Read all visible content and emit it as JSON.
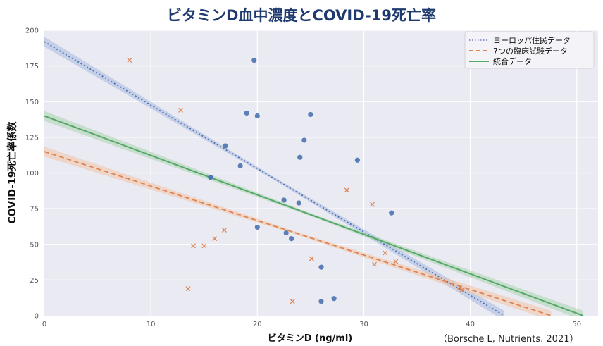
{
  "chart_data": {
    "type": "scatter",
    "title": "ビタミンD血中濃度とCOVID-19死亡率",
    "xlabel": "ビタミンD (ng/ml)",
    "ylabel": "COVID-19死亡率係数",
    "xlim": [
      0,
      52
    ],
    "ylim": [
      0,
      200
    ],
    "xticks": [
      0,
      10,
      20,
      30,
      40,
      50
    ],
    "yticks": [
      0,
      25,
      50,
      75,
      100,
      125,
      150,
      175,
      200
    ],
    "grid": true,
    "legend_position": "top-right",
    "colors": {
      "europe": "#4c72b0",
      "trials": "#dd8452",
      "combined": "#55a868",
      "background": "#eaeaf2",
      "title": "#1f3a6e"
    },
    "series": [
      {
        "name": "ヨーロッパ住民データ",
        "marker": "circle",
        "line_style": "dotted",
        "points": [
          [
            19.7,
            179
          ],
          [
            19.0,
            142
          ],
          [
            20.0,
            140
          ],
          [
            25.0,
            141
          ],
          [
            24.4,
            123
          ],
          [
            17.0,
            119
          ],
          [
            24.0,
            111
          ],
          [
            29.4,
            109
          ],
          [
            18.4,
            105
          ],
          [
            22.5,
            81
          ],
          [
            23.9,
            79
          ],
          [
            32.6,
            72
          ],
          [
            20.0,
            62
          ],
          [
            22.7,
            58
          ],
          [
            23.2,
            54
          ],
          [
            26.0,
            34
          ],
          [
            27.2,
            12
          ],
          [
            26.0,
            10
          ]
        ],
        "fit": [
          [
            0,
            192
          ],
          [
            43.2,
            0
          ]
        ]
      },
      {
        "name": "7つの臨床試験データ",
        "marker": "x",
        "line_style": "dashed",
        "points": [
          [
            8.0,
            179
          ],
          [
            12.8,
            144
          ],
          [
            28.4,
            88
          ],
          [
            30.8,
            78
          ],
          [
            16.9,
            60
          ],
          [
            16.0,
            54
          ],
          [
            14.0,
            49
          ],
          [
            15.0,
            49
          ],
          [
            32.0,
            44
          ],
          [
            25.1,
            40
          ],
          [
            33.0,
            38
          ],
          [
            31.0,
            36
          ],
          [
            39.0,
            20
          ],
          [
            39.2,
            18
          ],
          [
            13.5,
            19
          ],
          [
            23.3,
            10
          ]
        ],
        "fit": [
          [
            0,
            115
          ],
          [
            47.6,
            0
          ]
        ]
      },
      {
        "name": "統合データ",
        "line_style": "solid",
        "fit": [
          [
            0,
            140
          ],
          [
            50.6,
            0
          ]
        ]
      }
    ],
    "annotations": [
      {
        "x": 15.6,
        "y": 97,
        "color": "europe"
      }
    ],
    "source": "（Borsche L, Nutrients. 2021）"
  }
}
